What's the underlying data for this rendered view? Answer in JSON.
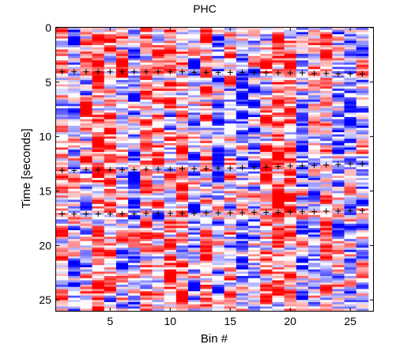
{
  "chart_data": {
    "type": "heatmap",
    "title": "PHC",
    "xlabel": "Bin #",
    "ylabel": "Time [seconds]",
    "xlim": [
      0.5,
      26.9
    ],
    "ylim": [
      0,
      26.0
    ],
    "y_reversed": true,
    "x_ticks": [
      5,
      10,
      15,
      20,
      25
    ],
    "x_tick_labels": [
      "5",
      "10",
      "15",
      "20",
      "25"
    ],
    "y_ticks": [
      0,
      5,
      10,
      15,
      20,
      25
    ],
    "y_tick_labels": [
      "0",
      "5",
      "10",
      "15",
      "20",
      "25"
    ],
    "colormap": [
      "#0000ff",
      "#ffffff",
      "#ff0000"
    ],
    "bins": 26,
    "time_step": 0.2,
    "markers": {
      "symbol": "+",
      "color": "#000000",
      "series": [
        {
          "x": [
            1,
            2,
            3,
            4,
            5,
            6,
            7,
            8,
            9,
            10,
            11,
            12,
            13,
            14,
            15,
            16,
            17,
            18,
            19,
            20,
            21,
            22,
            23,
            24,
            25,
            26
          ],
          "y": [
            4.05,
            4.05,
            4.05,
            4.05,
            4.05,
            4.05,
            4.05,
            4.05,
            4.05,
            4.05,
            4.05,
            4.1,
            4.1,
            4.1,
            4.1,
            4.1,
            4.1,
            4.15,
            4.15,
            4.15,
            4.15,
            4.2,
            4.2,
            4.25,
            4.25,
            4.25
          ]
        },
        {
          "x": [
            1,
            2,
            3,
            4,
            5,
            6,
            7,
            8,
            9,
            10,
            11,
            12,
            13,
            14,
            15,
            16,
            17,
            18,
            19,
            20,
            21,
            22,
            23,
            24,
            25,
            26
          ],
          "y": [
            13.1,
            13.1,
            13.05,
            13.05,
            13.05,
            13.05,
            13.05,
            13.0,
            13.0,
            13.0,
            12.95,
            12.95,
            12.95,
            12.9,
            12.9,
            12.85,
            12.8,
            12.8,
            12.75,
            12.7,
            12.7,
            12.65,
            12.6,
            12.55,
            12.5,
            12.5
          ]
        },
        {
          "x": [
            1,
            2,
            3,
            4,
            5,
            6,
            7,
            8,
            9,
            10,
            11,
            12,
            13,
            14,
            15,
            16,
            17,
            18,
            19,
            20,
            21,
            22,
            23,
            24,
            25,
            26
          ],
          "y": [
            17.1,
            17.1,
            17.1,
            17.1,
            17.1,
            17.1,
            17.1,
            17.05,
            17.05,
            17.05,
            17.05,
            17.05,
            17.0,
            17.0,
            17.0,
            17.0,
            16.95,
            16.95,
            16.95,
            16.9,
            16.9,
            16.9,
            16.85,
            16.85,
            16.8,
            16.8
          ]
        }
      ]
    }
  }
}
